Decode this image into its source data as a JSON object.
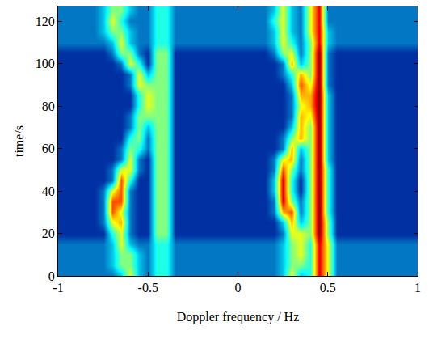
{
  "chart_data": {
    "type": "heatmap",
    "xlabel": "Doppler frequency / Hz",
    "ylabel": "time/s",
    "xlim": [
      -1,
      1
    ],
    "xticks": [
      -1,
      -0.5,
      0,
      0.5,
      1
    ],
    "ylim": [
      0,
      127
    ],
    "yticks": [
      0,
      20,
      40,
      60,
      80,
      100,
      120
    ],
    "zlim": [
      0,
      10
    ],
    "x": [
      -1,
      -0.95,
      -0.9,
      -0.85,
      -0.8,
      -0.75,
      -0.7,
      -0.65,
      -0.6,
      -0.55,
      -0.5,
      -0.45,
      -0.4,
      -0.35,
      -0.3,
      -0.25,
      -0.2,
      -0.15,
      -0.1,
      -0.05,
      0,
      0.05,
      0.1,
      0.15,
      0.2,
      0.25,
      0.3,
      0.35,
      0.4,
      0.45,
      0.5,
      0.55,
      0.6,
      0.65,
      0.7,
      0.75,
      0.8,
      0.85,
      0.9,
      0.95,
      1
    ],
    "y": [
      0,
      5,
      10,
      15,
      20,
      25,
      30,
      35,
      40,
      45,
      50,
      55,
      60,
      65,
      70,
      75,
      80,
      85,
      90,
      95,
      100,
      105,
      110,
      115,
      120,
      125
    ],
    "z": [
      [
        2,
        2,
        2,
        2,
        2,
        2,
        2,
        3,
        6,
        3,
        2,
        4,
        4,
        2,
        2,
        2,
        2,
        2,
        2,
        2,
        2,
        2,
        2,
        2,
        2,
        3,
        6,
        3,
        4,
        9,
        6,
        2,
        2,
        2,
        2,
        2,
        2,
        2,
        2,
        2,
        2
      ],
      [
        2,
        2,
        2,
        2,
        2,
        2,
        3,
        5,
        5,
        3,
        2,
        4,
        4,
        2,
        2,
        2,
        2,
        2,
        2,
        2,
        2,
        2,
        2,
        2,
        2,
        3,
        5,
        5,
        4,
        9,
        6,
        2,
        2,
        2,
        2,
        2,
        2,
        2,
        2,
        2,
        2
      ],
      [
        2,
        2,
        2,
        2,
        2,
        2,
        3,
        5,
        5,
        3,
        2,
        4,
        4,
        2,
        2,
        2,
        2,
        2,
        2,
        2,
        2,
        2,
        2,
        2,
        2,
        3,
        5,
        6,
        4,
        9,
        6,
        2,
        2,
        2,
        2,
        2,
        2,
        2,
        2,
        2,
        2
      ],
      [
        2,
        2,
        2,
        2,
        2,
        2,
        3,
        6,
        3,
        2,
        2,
        4,
        4,
        2,
        2,
        2,
        2,
        2,
        2,
        2,
        2,
        2,
        2,
        2,
        2,
        3,
        5,
        6,
        4,
        9,
        6,
        2,
        2,
        2,
        2,
        2,
        2,
        2,
        2,
        2,
        2
      ],
      [
        1,
        1,
        1,
        1,
        1,
        1,
        4,
        6,
        2,
        1,
        1,
        5,
        5,
        1,
        1,
        1,
        1,
        1,
        1,
        1,
        1,
        1,
        1,
        1,
        1,
        2,
        6,
        6,
        5,
        10,
        5,
        1,
        1,
        1,
        1,
        1,
        1,
        1,
        1,
        1,
        1
      ],
      [
        1,
        1,
        1,
        1,
        1,
        2,
        6,
        7,
        2,
        1,
        1,
        5,
        5,
        1,
        1,
        1,
        1,
        1,
        1,
        1,
        1,
        1,
        1,
        1,
        1,
        3,
        7,
        3,
        5,
        10,
        5,
        1,
        1,
        1,
        1,
        1,
        1,
        1,
        1,
        1,
        1
      ],
      [
        1,
        1,
        1,
        1,
        1,
        2,
        8,
        6,
        2,
        1,
        1,
        5,
        5,
        1,
        1,
        1,
        1,
        1,
        1,
        1,
        1,
        1,
        1,
        1,
        2,
        7,
        8,
        2,
        5,
        10,
        4,
        1,
        1,
        1,
        1,
        1,
        1,
        1,
        1,
        1,
        1
      ],
      [
        1,
        1,
        1,
        1,
        1,
        2,
        8,
        8,
        2,
        1,
        1,
        5,
        5,
        1,
        1,
        1,
        1,
        1,
        1,
        1,
        1,
        1,
        1,
        1,
        2,
        9,
        5,
        2,
        5,
        10,
        4,
        1,
        1,
        1,
        1,
        1,
        1,
        1,
        1,
        1,
        1
      ],
      [
        1,
        1,
        1,
        1,
        1,
        2,
        6,
        8,
        2,
        1,
        1,
        5,
        5,
        1,
        1,
        1,
        1,
        1,
        1,
        1,
        1,
        1,
        1,
        1,
        3,
        9,
        4,
        1,
        5,
        10,
        4,
        1,
        1,
        1,
        1,
        1,
        1,
        1,
        1,
        1,
        1
      ],
      [
        1,
        1,
        1,
        1,
        1,
        1,
        2,
        8,
        4,
        1,
        1,
        5,
        5,
        1,
        1,
        1,
        1,
        1,
        1,
        1,
        1,
        1,
        1,
        1,
        3,
        9,
        4,
        1,
        5,
        10,
        4,
        1,
        1,
        1,
        1,
        1,
        1,
        1,
        1,
        1,
        1
      ],
      [
        1,
        1,
        1,
        1,
        1,
        1,
        2,
        6,
        6,
        2,
        1,
        5,
        5,
        1,
        1,
        1,
        1,
        1,
        1,
        1,
        1,
        1,
        1,
        1,
        2,
        8,
        5,
        2,
        5,
        10,
        4,
        1,
        1,
        1,
        1,
        1,
        1,
        1,
        1,
        1,
        1
      ],
      [
        1,
        1,
        1,
        1,
        1,
        1,
        1,
        2,
        6,
        2,
        1,
        5,
        5,
        1,
        1,
        1,
        1,
        1,
        1,
        1,
        1,
        1,
        1,
        1,
        2,
        6,
        7,
        2,
        5,
        10,
        3,
        1,
        1,
        1,
        1,
        1,
        1,
        1,
        1,
        1,
        1
      ],
      [
        1,
        1,
        1,
        1,
        1,
        1,
        1,
        2,
        5,
        4,
        2,
        5,
        5,
        1,
        1,
        1,
        1,
        1,
        1,
        1,
        1,
        1,
        1,
        1,
        1,
        2,
        7,
        3,
        5,
        10,
        3,
        1,
        1,
        1,
        1,
        1,
        1,
        1,
        1,
        1,
        1
      ],
      [
        1,
        1,
        1,
        1,
        1,
        1,
        1,
        1,
        4,
        5,
        2,
        5,
        5,
        1,
        1,
        1,
        1,
        1,
        1,
        1,
        1,
        1,
        1,
        1,
        1,
        2,
        5,
        7,
        5,
        10,
        3,
        1,
        1,
        1,
        1,
        1,
        1,
        1,
        1,
        1,
        1
      ],
      [
        1,
        1,
        1,
        1,
        1,
        1,
        1,
        1,
        2,
        5,
        3,
        5,
        5,
        1,
        1,
        1,
        1,
        1,
        1,
        1,
        1,
        1,
        1,
        1,
        1,
        1,
        3,
        7,
        5,
        10,
        3,
        1,
        1,
        1,
        1,
        1,
        1,
        1,
        1,
        1,
        1
      ],
      [
        1,
        1,
        1,
        1,
        1,
        1,
        1,
        1,
        2,
        5,
        5,
        5,
        5,
        1,
        1,
        1,
        1,
        1,
        1,
        1,
        1,
        1,
        1,
        1,
        1,
        1,
        2,
        7,
        6,
        10,
        3,
        1,
        1,
        1,
        1,
        1,
        1,
        1,
        1,
        1,
        1
      ],
      [
        1,
        1,
        1,
        1,
        1,
        1,
        1,
        1,
        1,
        4,
        6,
        5,
        5,
        1,
        1,
        1,
        1,
        1,
        1,
        1,
        1,
        1,
        1,
        1,
        1,
        1,
        2,
        6,
        7,
        10,
        3,
        1,
        1,
        1,
        1,
        1,
        1,
        1,
        1,
        1,
        1
      ],
      [
        1,
        1,
        1,
        1,
        1,
        1,
        1,
        1,
        1,
        4,
        6,
        5,
        5,
        1,
        1,
        1,
        1,
        1,
        1,
        1,
        1,
        1,
        1,
        1,
        1,
        1,
        2,
        7,
        7,
        10,
        3,
        1,
        1,
        1,
        1,
        1,
        1,
        1,
        1,
        1,
        1
      ],
      [
        1,
        1,
        1,
        1,
        1,
        1,
        1,
        1,
        2,
        6,
        5,
        5,
        5,
        1,
        1,
        1,
        1,
        1,
        1,
        1,
        1,
        1,
        1,
        1,
        1,
        1,
        3,
        8,
        6,
        10,
        2,
        1,
        1,
        1,
        1,
        1,
        1,
        1,
        1,
        1,
        1
      ],
      [
        1,
        1,
        1,
        1,
        1,
        1,
        1,
        1,
        2,
        6,
        3,
        5,
        5,
        1,
        1,
        1,
        1,
        1,
        1,
        1,
        1,
        1,
        1,
        1,
        1,
        2,
        4,
        7,
        5,
        10,
        2,
        1,
        1,
        1,
        1,
        1,
        1,
        1,
        1,
        1,
        1
      ],
      [
        1,
        1,
        1,
        1,
        1,
        1,
        1,
        2,
        6,
        4,
        1,
        5,
        5,
        1,
        1,
        1,
        1,
        1,
        1,
        1,
        1,
        1,
        1,
        1,
        1,
        2,
        7,
        3,
        5,
        10,
        2,
        1,
        1,
        1,
        1,
        1,
        1,
        1,
        1,
        1,
        1
      ],
      [
        1,
        1,
        1,
        1,
        1,
        1,
        2,
        5,
        5,
        2,
        1,
        5,
        5,
        1,
        1,
        1,
        1,
        1,
        1,
        1,
        1,
        1,
        1,
        1,
        2,
        5,
        6,
        2,
        5,
        10,
        2,
        1,
        1,
        1,
        1,
        1,
        1,
        1,
        1,
        1,
        1
      ],
      [
        2,
        2,
        2,
        2,
        2,
        2,
        3,
        6,
        3,
        2,
        2,
        4,
        4,
        2,
        2,
        2,
        2,
        2,
        2,
        2,
        2,
        2,
        2,
        2,
        3,
        6,
        4,
        2,
        5,
        9,
        3,
        2,
        2,
        2,
        2,
        2,
        2,
        2,
        2,
        2,
        2
      ],
      [
        2,
        2,
        2,
        2,
        2,
        3,
        5,
        5,
        3,
        2,
        2,
        4,
        4,
        2,
        2,
        2,
        2,
        2,
        2,
        2,
        2,
        2,
        2,
        2,
        3,
        6,
        3,
        2,
        6,
        9,
        3,
        2,
        2,
        2,
        2,
        2,
        2,
        2,
        2,
        2,
        2
      ],
      [
        2,
        2,
        2,
        2,
        2,
        3,
        6,
        4,
        2,
        2,
        2,
        4,
        4,
        2,
        2,
        2,
        2,
        2,
        2,
        2,
        2,
        2,
        2,
        2,
        4,
        6,
        3,
        2,
        6,
        9,
        2,
        2,
        2,
        2,
        2,
        2,
        2,
        2,
        2,
        2,
        2
      ],
      [
        2,
        2,
        2,
        2,
        2,
        3,
        5,
        5,
        3,
        2,
        2,
        4,
        4,
        2,
        2,
        2,
        2,
        2,
        2,
        2,
        2,
        2,
        2,
        2,
        3,
        6,
        3,
        2,
        6,
        9,
        2,
        2,
        2,
        2,
        2,
        2,
        2,
        2,
        2,
        2,
        2
      ]
    ],
    "grid": false
  }
}
